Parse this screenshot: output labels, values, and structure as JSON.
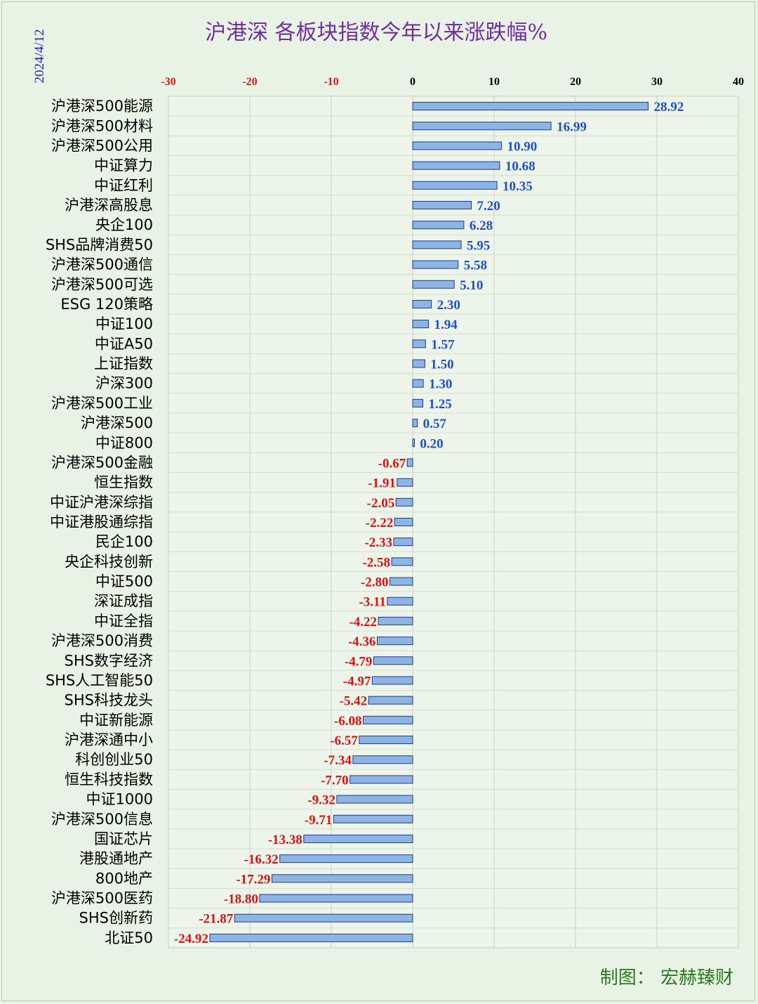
{
  "chart_data": {
    "type": "bar",
    "orientation": "horizontal",
    "title": "沪港深 各板块指数今年以来涨跌幅%",
    "date": "2024/4/12",
    "credit": "制图： 宏赫臻财",
    "xlim": [
      -30,
      40
    ],
    "xticks": [
      -30,
      -20,
      -10,
      0,
      10,
      20,
      30,
      40
    ],
    "grid": true,
    "bar_color": "#8eb4e3",
    "bar_edge_color": "#1f3a8a",
    "positive_label_color": "#1f4fd1",
    "negative_label_color": "#e01010",
    "categories": [
      "沪港深500能源",
      "沪港深500材料",
      "沪港深500公用",
      "中证算力",
      "中证红利",
      "沪港深高股息",
      "央企100",
      "SHS品牌消费50",
      "沪港深500通信",
      "沪港深500可选",
      "ESG 120策略",
      "中证100",
      "中证A50",
      "上证指数",
      "沪深300",
      "沪港深500工业",
      "沪港深500",
      "中证800",
      "沪港深500金融",
      "恒生指数",
      "中证沪港深综指",
      "中证港股通综指",
      "民企100",
      "央企科技创新",
      "中证500",
      "深证成指",
      "中证全指",
      "沪港深500消费",
      "SHS数字经济",
      "SHS人工智能50",
      "SHS科技龙头",
      "中证新能源",
      "沪港深通中小",
      "科创创业50",
      "恒生科技指数",
      "中证1000",
      "沪港深500信息",
      "国证芯片",
      "港股通地产",
      "800地产",
      "沪港深500医药",
      "SHS创新药",
      "北证50"
    ],
    "labels": [
      "28.92",
      "16.99",
      "10.90",
      "10.68",
      "10.35",
      "7.20",
      "6.28",
      "5.95",
      "5.58",
      "5.10",
      "2.30",
      "1.94",
      "1.57",
      "1.50",
      "1.30",
      "1.25",
      "0.57",
      "0.20",
      "-0.67",
      "-1.91",
      "-2.05",
      "-2.22",
      "-2.33",
      "-2.58",
      "-2.80",
      "-3.11",
      "-4.22",
      "-4.36",
      "-4.79",
      "-4.97",
      "-5.42",
      "-6.08",
      "-6.57",
      "-7.34",
      "-7.70",
      "-9.32",
      "-9.71",
      "-13.38",
      "-16.32",
      "-17.29",
      "-18.80",
      "-21.87",
      "-24.92"
    ],
    "values": [
      28.92,
      16.99,
      10.9,
      10.68,
      10.35,
      7.2,
      6.28,
      5.95,
      5.58,
      5.1,
      2.3,
      1.94,
      1.57,
      1.5,
      1.3,
      1.25,
      0.57,
      0.2,
      -0.67,
      -1.91,
      -2.05,
      -2.22,
      -2.33,
      -2.58,
      -2.8,
      -3.11,
      -4.22,
      -4.36,
      -4.79,
      -4.97,
      -5.42,
      -6.08,
      -6.57,
      -7.34,
      -7.7,
      -9.32,
      -9.71,
      -13.38,
      -16.32,
      -17.29,
      -18.8,
      -21.87,
      -24.92
    ]
  }
}
